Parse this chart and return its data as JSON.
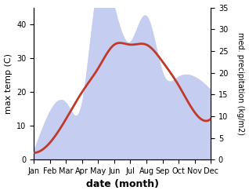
{
  "months": [
    "Jan",
    "Feb",
    "Mar",
    "Apr",
    "May",
    "Jun",
    "Jul",
    "Aug",
    "Sep",
    "Oct",
    "Nov",
    "Dec"
  ],
  "temperature": [
    2,
    5,
    12,
    20,
    27,
    34,
    34,
    34,
    29,
    22,
    14,
    12
  ],
  "precipitation": [
    2,
    11,
    13,
    13,
    40,
    35,
    27,
    33,
    20,
    19,
    19,
    16
  ],
  "temp_color": "#c0392b",
  "precip_fill_color": "#c5cef0",
  "temp_ylim": [
    0,
    45
  ],
  "precip_ylim": [
    0,
    35
  ],
  "temp_yticks": [
    0,
    10,
    20,
    30,
    40
  ],
  "precip_yticks": [
    0,
    5,
    10,
    15,
    20,
    25,
    30,
    35
  ],
  "xlabel": "date (month)",
  "ylabel_left": "max temp (C)",
  "ylabel_right": "med. precipitation (kg/m2)",
  "bg_color": "#f5f5f5"
}
